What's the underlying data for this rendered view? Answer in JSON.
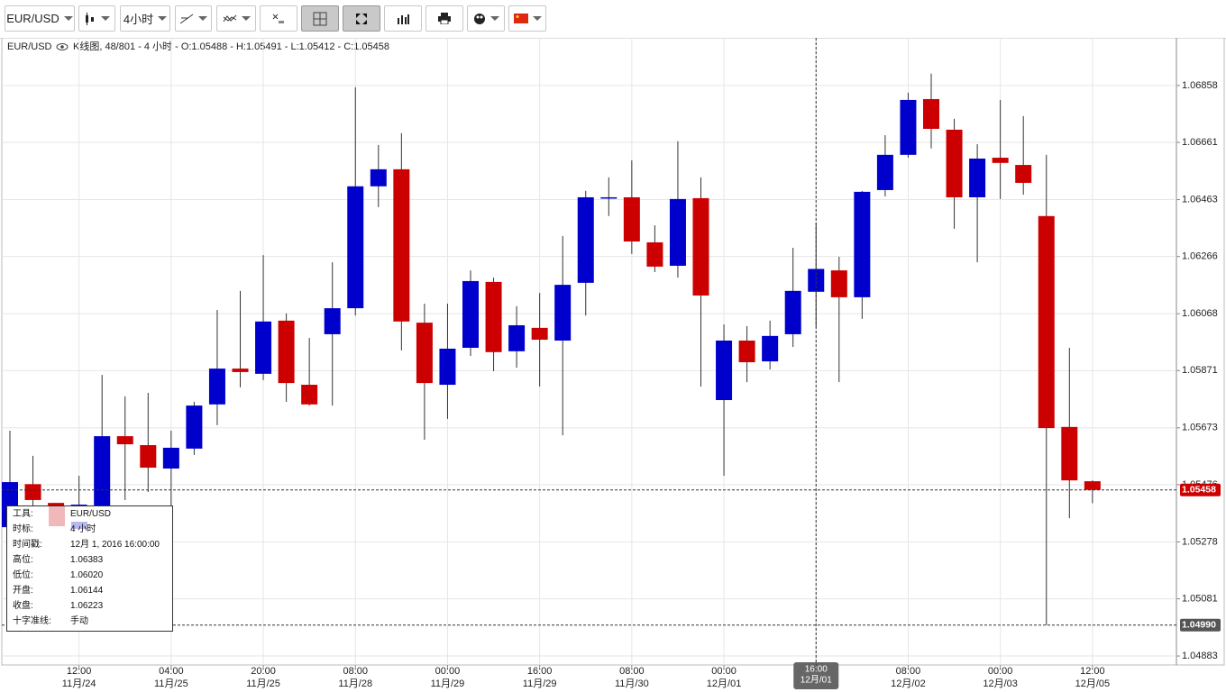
{
  "toolbar": {
    "symbol": "EUR/USD",
    "timeframe": "4小时"
  },
  "header": {
    "symbol": "EUR/USD",
    "info": "K线图, 48/801 - 4 小时 - O:1.05488 - H:1.05491 - L:1.05412 - C:1.05458"
  },
  "chart_data": {
    "type": "candlestick",
    "up_color": "#0000cc",
    "down_color": "#cc0000",
    "grid": true,
    "categories": [
      null,
      null,
      null,
      "12:00",
      null,
      null,
      null,
      "04:00",
      null,
      null,
      null,
      "20:00",
      null,
      null,
      null,
      "08:00",
      null,
      null,
      null,
      "00:00",
      null,
      null,
      null,
      "16:00",
      null,
      null,
      null,
      "08:00",
      null,
      null,
      null,
      "00:00",
      null,
      null,
      null,
      "16:00",
      null,
      null,
      null,
      "08:00",
      null,
      null,
      null,
      "00:00",
      null,
      null,
      null,
      "12:00"
    ],
    "category_dates": [
      null,
      null,
      null,
      "11月/24",
      null,
      null,
      null,
      "11月/25",
      null,
      null,
      null,
      "11月/25",
      null,
      null,
      null,
      "11月/28",
      null,
      null,
      null,
      "11月/29",
      null,
      null,
      null,
      "11月/29",
      null,
      null,
      null,
      "11月/30",
      null,
      null,
      null,
      "12月/01",
      null,
      null,
      null,
      "12月/01",
      null,
      null,
      null,
      "12月/02",
      null,
      null,
      null,
      "12月/03",
      null,
      null,
      null,
      "12月/05"
    ],
    "open": [
      1.05329,
      1.05478,
      1.05413,
      1.05404,
      1.0536,
      1.05644,
      1.05613,
      1.05532,
      1.05601,
      1.05754,
      1.05878,
      1.0586,
      1.06044,
      1.05822,
      1.05997,
      1.06087,
      1.06509,
      1.06568,
      1.06037,
      1.05822,
      1.0595,
      1.06178,
      1.05938,
      1.06019,
      1.05975,
      1.06175,
      1.06468,
      1.06471,
      1.06315,
      1.06234,
      1.06468,
      1.05769,
      1.05975,
      1.05903,
      1.05997,
      1.06144,
      1.06218,
      1.06125,
      1.06496,
      1.06618,
      1.06811,
      1.06705,
      1.06471,
      1.06608,
      1.06583,
      1.06406,
      1.05676,
      1.05488
    ],
    "high": [
      1.05663,
      1.05576,
      1.05413,
      1.05507,
      1.05856,
      1.05782,
      1.05794,
      1.05663,
      1.05763,
      1.06081,
      1.06147,
      1.06271,
      1.06069,
      1.05984,
      1.06246,
      1.06852,
      1.06652,
      1.06693,
      1.06103,
      1.06103,
      1.06218,
      1.06193,
      1.06094,
      1.0614,
      1.06337,
      1.06493,
      1.0654,
      1.06599,
      1.06374,
      1.06665,
      1.0654,
      1.06031,
      1.06025,
      1.06044,
      1.06296,
      1.06383,
      1.06265,
      1.06493,
      1.06686,
      1.06833,
      1.06899,
      1.06743,
      1.06655,
      1.06808,
      1.06752,
      1.06618,
      1.0595,
      1.05491
    ],
    "low": [
      1.05314,
      1.05392,
      1.0536,
      1.0536,
      1.05345,
      1.05423,
      1.05451,
      1.05382,
      1.05579,
      1.05682,
      1.05813,
      1.05838,
      1.05763,
      1.0575,
      1.0575,
      1.06062,
      1.06437,
      1.05941,
      1.05632,
      1.05704,
      1.05922,
      1.05869,
      1.05881,
      1.05816,
      1.05647,
      1.06062,
      1.06406,
      1.06275,
      1.06212,
      1.06193,
      1.05816,
      1.05507,
      1.05831,
      1.05875,
      1.05953,
      1.0602,
      1.05831,
      1.0605,
      1.06474,
      1.06608,
      1.0664,
      1.06362,
      1.06246,
      1.06465,
      1.0648,
      1.0499,
      1.0536,
      1.05412
    ],
    "close": [
      1.05485,
      1.05423,
      1.05404,
      1.05407,
      1.05644,
      1.05616,
      1.05535,
      1.05604,
      1.0575,
      1.05878,
      1.05866,
      1.06041,
      1.05828,
      1.05754,
      1.06087,
      1.06509,
      1.06568,
      1.06041,
      1.05828,
      1.05947,
      1.06181,
      1.05935,
      1.06028,
      1.05978,
      1.06168,
      1.06471,
      1.06471,
      1.06318,
      1.06231,
      1.06465,
      1.06131,
      1.05975,
      1.059,
      1.05991,
      1.06147,
      1.06223,
      1.06125,
      1.0649,
      1.06618,
      1.06808,
      1.06708,
      1.06471,
      1.06605,
      1.0659,
      1.06521,
      1.05672,
      1.05491,
      1.05458
    ],
    "ylim": [
      1.04852,
      1.07023
    ],
    "yticks": [
      1.06858,
      1.06661,
      1.06463,
      1.06266,
      1.06068,
      1.05871,
      1.05673,
      1.05476,
      1.05278,
      1.05081,
      1.04883
    ],
    "last_price": 1.05458,
    "crosshair": {
      "x_index": 35,
      "y": {
        "value": 1.0499,
        "label": "1.04990"
      }
    }
  },
  "tooltip": {
    "rows": [
      [
        "工具:",
        "EUR/USD"
      ],
      [
        "时标:",
        "4 小时"
      ],
      [
        "时间戳:",
        "12月 1, 2016 16:00:00"
      ],
      [
        "高位:",
        "1.06383"
      ],
      [
        "低位:",
        "1.06020"
      ],
      [
        "开盘:",
        "1.06144"
      ],
      [
        "收盘:",
        "1.06223"
      ],
      [
        "十字准线:",
        "手动"
      ]
    ]
  }
}
